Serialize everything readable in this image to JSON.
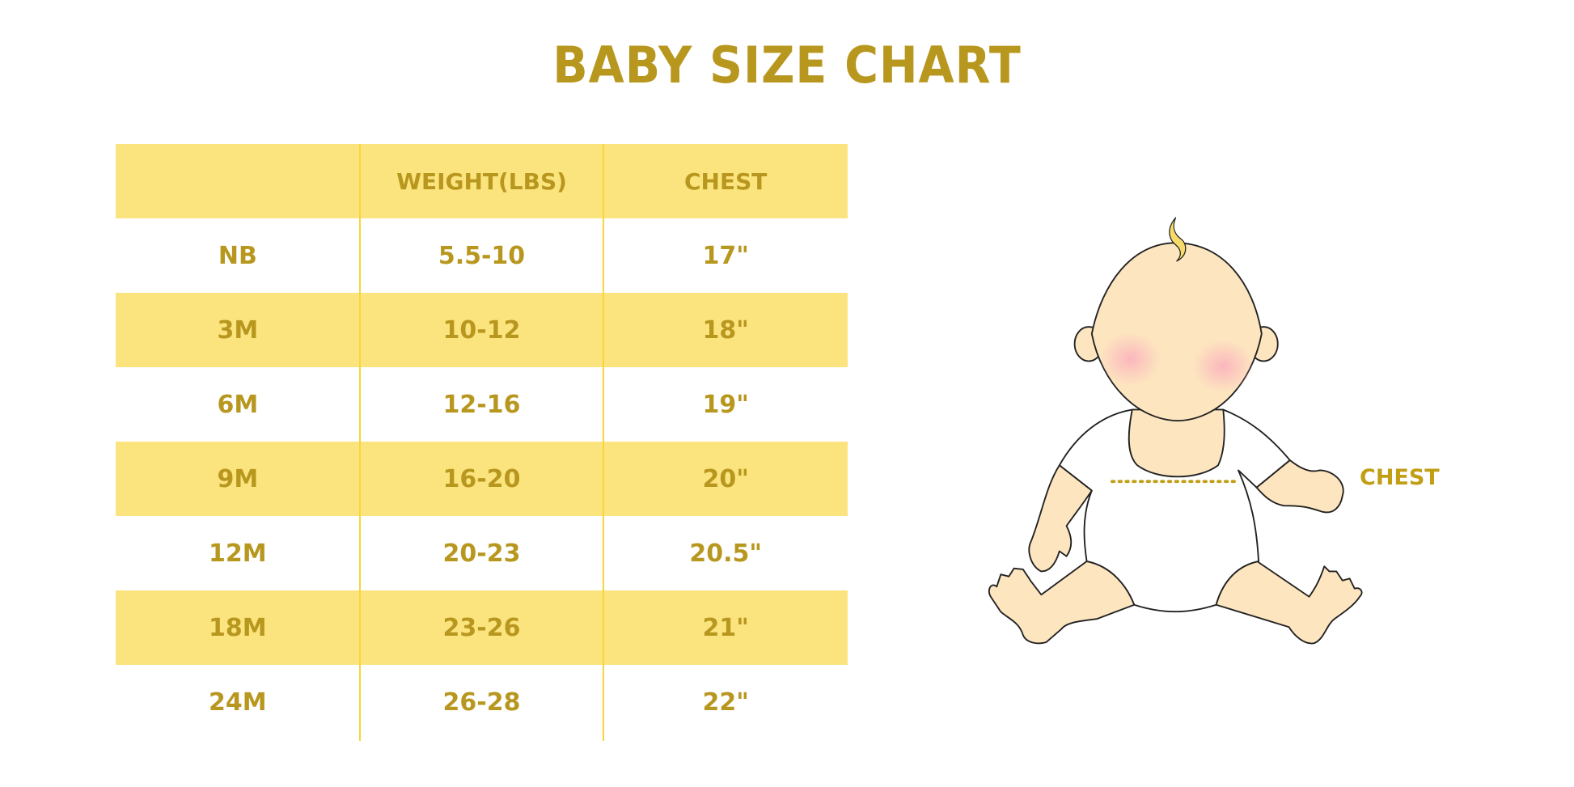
{
  "title": "BABY SIZE CHART",
  "table": {
    "headers": [
      "",
      "WEIGHT(LBS)",
      "CHEST"
    ],
    "rows": [
      [
        "NB",
        "5.5-10",
        "17\""
      ],
      [
        "3M",
        "10-12",
        "18\""
      ],
      [
        "6M",
        "12-16",
        "19\""
      ],
      [
        "9M",
        "16-20",
        "20\""
      ],
      [
        "12M",
        "20-23",
        "20.5\""
      ],
      [
        "18M",
        "23-26",
        "21\""
      ],
      [
        "24M",
        "26-28",
        "22\""
      ]
    ]
  },
  "illustration": {
    "chest_label": "CHEST"
  },
  "colors": {
    "accent": "#B8971F",
    "band": "#FBE47E",
    "skin": "#FDE5BF",
    "hair": "#F7DB6A"
  }
}
